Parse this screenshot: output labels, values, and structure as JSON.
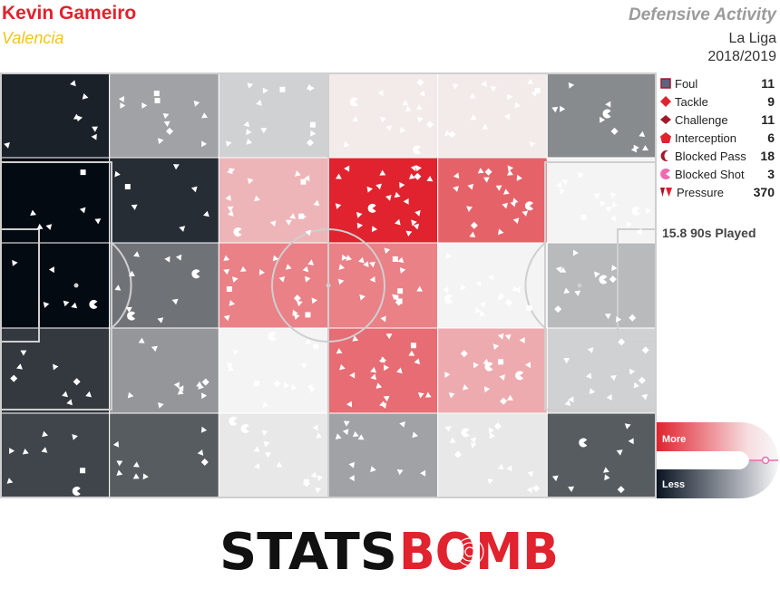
{
  "header": {
    "player_name": "Kevin Gameiro",
    "team": "Valencia",
    "title": "Defensive Activity",
    "league": "La Liga",
    "season": "2018/2019"
  },
  "legend": [
    {
      "name": "Foul",
      "count": "11",
      "icon": "square-icon",
      "color": "#5b6480"
    },
    {
      "name": "Tackle",
      "count": "9",
      "icon": "diamond-icon",
      "color": "#e0232e"
    },
    {
      "name": "Challenge",
      "count": "11",
      "icon": "wide-diamond-icon",
      "color": "#a11a2a"
    },
    {
      "name": "Interception",
      "count": "6",
      "icon": "pentagon-icon",
      "color": "#e0232e"
    },
    {
      "name": "Blocked Pass",
      "count": "18",
      "icon": "crescent-icon",
      "color": "#a11a2a"
    },
    {
      "name": "Blocked Shot",
      "count": "3",
      "icon": "pacman-icon",
      "color": "#f06ab0"
    },
    {
      "name": "Pressure",
      "count": "370",
      "icon": "triangle-pair-icon",
      "color": "#e0232e"
    }
  ],
  "played": "15.8 90s Played",
  "scale": {
    "more": "More",
    "less": "Less"
  },
  "logo": {
    "text_dark": "STATS",
    "text_red": "BOMB"
  },
  "chart_data": {
    "type": "heatmap",
    "description_rows": "5 horizontal bands by 6 vertical zones, attacking right",
    "zones_x": 6,
    "zones_y": 5,
    "values": [
      [
        -0.9,
        -0.35,
        -0.15,
        0.05,
        0.05,
        -0.45
      ],
      [
        -1.0,
        -0.85,
        0.3,
        1.0,
        0.7,
        0.0
      ],
      [
        -1.0,
        -0.55,
        0.55,
        0.55,
        0.0,
        -0.25
      ],
      [
        -0.8,
        -0.4,
        0.0,
        0.65,
        0.35,
        -0.15
      ],
      [
        -0.75,
        -0.65,
        -0.05,
        -0.35,
        -0.05,
        -0.65
      ]
    ],
    "colors": {
      "high": "#e0232e",
      "mid": "#f4f4f4",
      "low": "#030a12"
    },
    "marker_color": "#ffffff"
  }
}
